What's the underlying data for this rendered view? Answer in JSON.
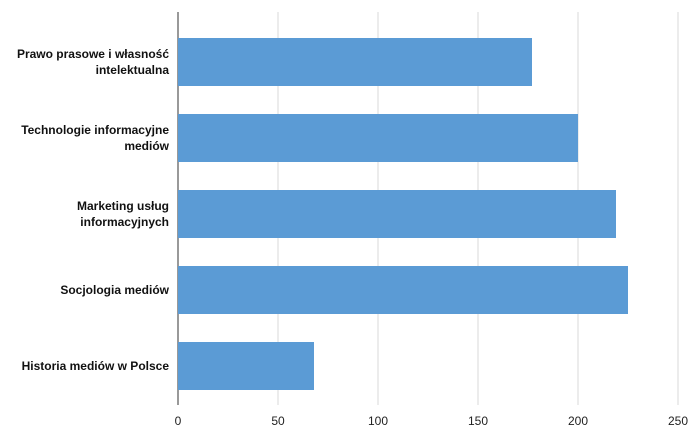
{
  "chart_data": {
    "type": "bar",
    "orientation": "horizontal",
    "categories": [
      "Prawo prasowe i własność intelektualna",
      "Technologie informacyjne mediów",
      "Marketing usług informacyjnych",
      "Socjologia mediów",
      "Historia mediów w Polsce"
    ],
    "values": [
      177,
      200,
      219,
      225,
      68
    ],
    "color": "#5b9bd5",
    "xlim": [
      0,
      250
    ],
    "xticks": [
      0,
      50,
      100,
      150,
      200,
      250
    ],
    "grid": true
  }
}
